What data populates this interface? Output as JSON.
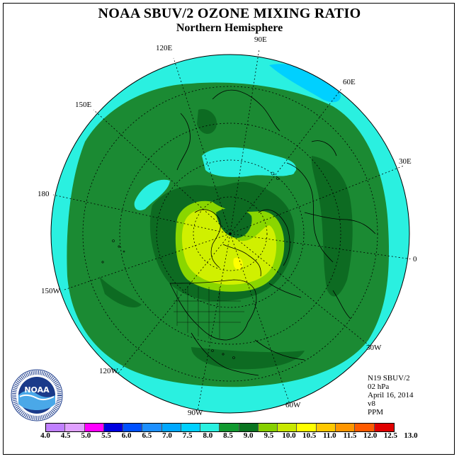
{
  "title": "NOAA SBUV/2 OZONE MIXING RATIO",
  "subtitle": "Northern Hemisphere",
  "longitude_labels": {
    "lon_90e": "90E",
    "lon_60e": "60E",
    "lon_30e": "30E",
    "lon_0": "0",
    "lon_30w": "30W",
    "lon_60w": "60W",
    "lon_90w": "90W",
    "lon_120w": "120W",
    "lon_150w": "150W",
    "lon_180": "180",
    "lon_150e": "150E",
    "lon_120e": "120E"
  },
  "info": {
    "satellite": "N19 SBUV/2",
    "level": "02 hPa",
    "date": "April 16, 2014",
    "version": "v8",
    "units": "PPM"
  },
  "logo": {
    "text": "NOAA",
    "ring_text": "NATIONAL OCEANIC AND ATMOSPHERIC ADMINISTRATION"
  },
  "colorbar": {
    "ticks": [
      "4.0",
      "4.5",
      "5.0",
      "5.5",
      "6.0",
      "6.5",
      "7.0",
      "7.5",
      "8.0",
      "8.5",
      "9.0",
      "9.5",
      "10.0",
      "10.5",
      "11.0",
      "11.5",
      "12.0",
      "12.5",
      "13.0"
    ],
    "colors": [
      "#c080ff",
      "#e0a0ff",
      "#ff00ff",
      "#0000e0",
      "#0050ff",
      "#1e90ff",
      "#00a8ff",
      "#00d0ff",
      "#2af0e0",
      "#129a30",
      "#0a7520",
      "#86d000",
      "#c8e800",
      "#ffff00",
      "#ffc800",
      "#ff9600",
      "#ff5a00",
      "#e00000",
      "#8c5028"
    ]
  },
  "map_colors": {
    "level_8_0": "#2af0e0",
    "level_8_5": "#1b8a33",
    "level_9_0": "#0d6b22",
    "level_9_5": "#8ad600",
    "level_10_0": "#d0f000",
    "level_10_5": "#ffff00",
    "level_7_5": "#00d0ff"
  }
}
